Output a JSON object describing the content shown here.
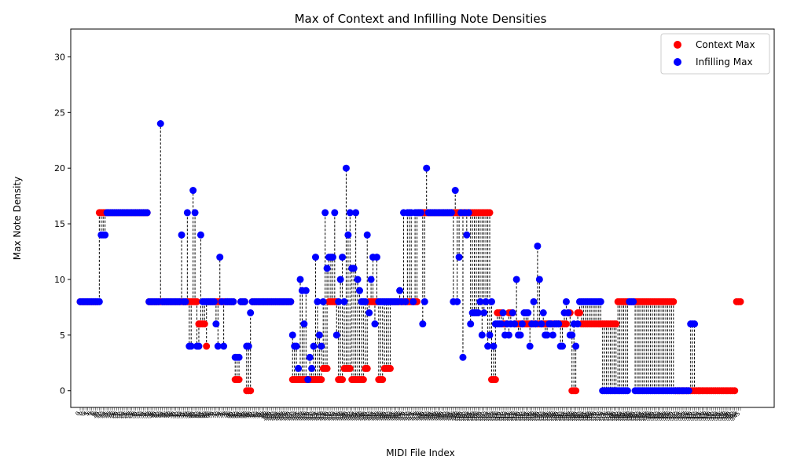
{
  "chart_data": {
    "type": "scatter",
    "title": "Max of Context and Infilling Note Densities",
    "xlabel": "MIDI File Index",
    "ylabel": "Max Note Density",
    "ylim": [
      -1.5,
      32.5
    ],
    "yticks": [
      0,
      5,
      10,
      15,
      20,
      25,
      30
    ],
    "grid": false,
    "legend_position": "upper-right",
    "connector_style": "black dashed vertical line between the two values at each index",
    "series": [
      {
        "name": "Context Max",
        "color": "#ff0000",
        "values": [
          8,
          8,
          8,
          8,
          8,
          8,
          8,
          8,
          8,
          8,
          16,
          16,
          16,
          16,
          16,
          16,
          16,
          16,
          16,
          16,
          16,
          16,
          16,
          16,
          16,
          16,
          16,
          16,
          16,
          16,
          16,
          16,
          16,
          16,
          16,
          16,
          8,
          8,
          8,
          8,
          8,
          8,
          8,
          8,
          8,
          8,
          8,
          8,
          8,
          8,
          8,
          8,
          8,
          8,
          8,
          8,
          8,
          8,
          8,
          8,
          8,
          8,
          6,
          6,
          6,
          6,
          4,
          8,
          8,
          8,
          8,
          8,
          8,
          8,
          8,
          8,
          8,
          8,
          8,
          8,
          8,
          1,
          1,
          1,
          8,
          8,
          8,
          0,
          0,
          0,
          8,
          8,
          8,
          8,
          8,
          8,
          8,
          8,
          8,
          8,
          8,
          8,
          8,
          8,
          8,
          8,
          8,
          8,
          8,
          8,
          8,
          1,
          1,
          1,
          1,
          1,
          1,
          1,
          1,
          1,
          1,
          1,
          1,
          1,
          1,
          1,
          1,
          2,
          2,
          2,
          8,
          8,
          8,
          8,
          8,
          1,
          1,
          1,
          2,
          2,
          2,
          2,
          1,
          1,
          1,
          1,
          1,
          1,
          1,
          2,
          2,
          8,
          8,
          8,
          8,
          8,
          1,
          1,
          1,
          2,
          2,
          2,
          2,
          8,
          8,
          8,
          8,
          8,
          8,
          8,
          8,
          8,
          8,
          8,
          8,
          8,
          8,
          16,
          16,
          16,
          16,
          16,
          16,
          16,
          16,
          16,
          16,
          16,
          16,
          16,
          16,
          16,
          16,
          16,
          16,
          16,
          16,
          16,
          16,
          16,
          16,
          16,
          16,
          16,
          16,
          16,
          16,
          16,
          16,
          16,
          16,
          16,
          16,
          16,
          16,
          1,
          1,
          1,
          7,
          7,
          7,
          6,
          6,
          6,
          7,
          7,
          7,
          6,
          6,
          6,
          6,
          6,
          6,
          6,
          6,
          6,
          6,
          6,
          6,
          6,
          6,
          6,
          6,
          6,
          6,
          6,
          6,
          6,
          6,
          6,
          6,
          6,
          6,
          6,
          6,
          7,
          7,
          0,
          0,
          0,
          7,
          7,
          6,
          6,
          6,
          6,
          6,
          6,
          6,
          6,
          6,
          6,
          6,
          6,
          6,
          6,
          6,
          6,
          6,
          6,
          6,
          8,
          8,
          8,
          8,
          8,
          8,
          8,
          8,
          8,
          8,
          8,
          8,
          8,
          8,
          8,
          8,
          8,
          8,
          8,
          8,
          8,
          8,
          8,
          8,
          8,
          8,
          8,
          8,
          8,
          8,
          0,
          0,
          0,
          0,
          0,
          0,
          0,
          0,
          0,
          0,
          0,
          0,
          0,
          0,
          0,
          0,
          0,
          0,
          0,
          0,
          0,
          0,
          0,
          0,
          0,
          0,
          0,
          0,
          0,
          0,
          0,
          0,
          8,
          8,
          8
        ],
        "value_source_note": "Estimated from gridlines, one value per MIDI file index"
      },
      {
        "name": "Infilling Max",
        "color": "#0000ff",
        "values": [
          8,
          8,
          8,
          8,
          8,
          8,
          8,
          8,
          8,
          8,
          8,
          14,
          14,
          14,
          16,
          16,
          16,
          16,
          16,
          16,
          16,
          16,
          16,
          16,
          16,
          16,
          16,
          16,
          16,
          16,
          16,
          16,
          16,
          16,
          16,
          16,
          8,
          8,
          8,
          8,
          8,
          8,
          24,
          8,
          8,
          8,
          8,
          8,
          8,
          8,
          8,
          8,
          8,
          14,
          8,
          8,
          16,
          4,
          4,
          18,
          16,
          4,
          4,
          14,
          8,
          8,
          8,
          8,
          8,
          8,
          8,
          6,
          4,
          12,
          8,
          4,
          8,
          8,
          8,
          8,
          8,
          3,
          3,
          3,
          8,
          8,
          8,
          4,
          4,
          7,
          8,
          8,
          8,
          8,
          8,
          8,
          8,
          8,
          8,
          8,
          8,
          8,
          8,
          8,
          8,
          8,
          8,
          8,
          8,
          8,
          8,
          5,
          4,
          4,
          2,
          10,
          9,
          6,
          9,
          1,
          3,
          2,
          4,
          12,
          8,
          5,
          4,
          8,
          16,
          11,
          12,
          12,
          12,
          16,
          5,
          8,
          10,
          12,
          8,
          20,
          14,
          16,
          11,
          11,
          16,
          10,
          9,
          8,
          8,
          8,
          14,
          7,
          10,
          12,
          6,
          12,
          8,
          8,
          8,
          8,
          8,
          8,
          8,
          8,
          8,
          8,
          8,
          9,
          8,
          16,
          8,
          16,
          16,
          16,
          8,
          16,
          16,
          16,
          16,
          6,
          8,
          20,
          16,
          16,
          16,
          16,
          16,
          16,
          16,
          16,
          16,
          16,
          16,
          16,
          16,
          8,
          18,
          8,
          12,
          16,
          3,
          16,
          14,
          16,
          6,
          7,
          7,
          7,
          7,
          8,
          5,
          7,
          8,
          4,
          5,
          8,
          4,
          6,
          6,
          6,
          6,
          7,
          5,
          6,
          5,
          6,
          7,
          6,
          10,
          5,
          5,
          6,
          7,
          7,
          7,
          4,
          6,
          8,
          6,
          13,
          10,
          6,
          7,
          5,
          5,
          6,
          6,
          5,
          6,
          6,
          6,
          4,
          4,
          7,
          8,
          7,
          5,
          5,
          6,
          4,
          6,
          8,
          8,
          8,
          8,
          8,
          8,
          8,
          8,
          8,
          8,
          8,
          8,
          0,
          0,
          0,
          0,
          0,
          0,
          0,
          0,
          0,
          0,
          0,
          0,
          0,
          0,
          8,
          8,
          8,
          0,
          0,
          0,
          0,
          0,
          0,
          0,
          0,
          0,
          0,
          0,
          0,
          0,
          0,
          0,
          0,
          0,
          0,
          0,
          0,
          0,
          0,
          0,
          0,
          0,
          0,
          0,
          0,
          0,
          6,
          6,
          6
        ],
        "value_source_note": "Estimated from gridlines, one value per MIDI file index"
      }
    ]
  }
}
